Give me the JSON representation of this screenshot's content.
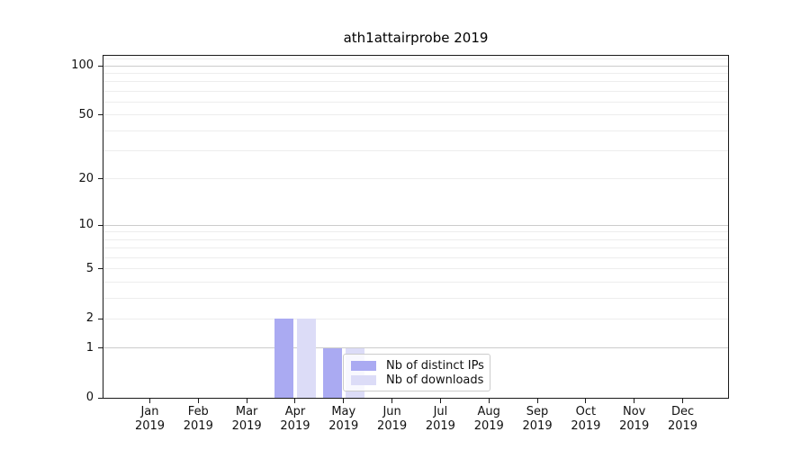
{
  "chart_data": {
    "type": "bar",
    "title": "ath1attairprobe 2019",
    "categories": [
      "Jan",
      "Feb",
      "Mar",
      "Apr",
      "May",
      "Jun",
      "Jul",
      "Aug",
      "Sep",
      "Oct",
      "Nov",
      "Dec"
    ],
    "category_year": "2019",
    "series": [
      {
        "name": "Nb of distinct IPs",
        "color": "#aaaaf2",
        "values": [
          0,
          0,
          0,
          2,
          1,
          0,
          0,
          0,
          0,
          0,
          0,
          0
        ]
      },
      {
        "name": "Nb of downloads",
        "color": "#dcdcf7",
        "values": [
          0,
          0,
          0,
          2,
          1,
          0,
          0,
          0,
          0,
          0,
          0,
          0
        ]
      }
    ],
    "yscale": "log1p",
    "ylim": [
      0,
      115
    ],
    "yticks": [
      0,
      1,
      2,
      5,
      10,
      20,
      50,
      100
    ],
    "grid": {
      "major": [
        1,
        10,
        100
      ],
      "minor": [
        2,
        3,
        4,
        5,
        6,
        7,
        8,
        9,
        20,
        30,
        40,
        50,
        60,
        70,
        80,
        90,
        110
      ]
    },
    "legend": {
      "position": "lower center",
      "entries": [
        "Nb of distinct IPs",
        "Nb of downloads"
      ]
    }
  }
}
